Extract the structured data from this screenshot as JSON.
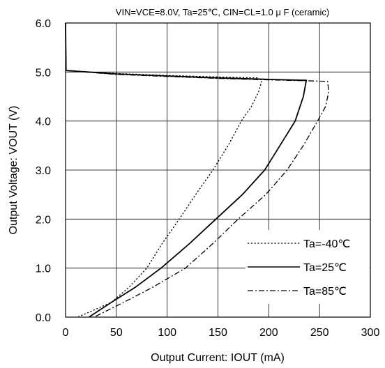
{
  "chart_data": {
    "type": "line",
    "conditions": "VIN=VCE=8.0V,  Ta=25℃,  CIN=CL=1.0 μ F  (ceramic)",
    "xlabel": "Output Current: IOUT (mA)",
    "ylabel": "Output Voltage: VOUT (V)",
    "xlim": [
      0,
      300
    ],
    "ylim": [
      0,
      6
    ],
    "xticks": [
      "0",
      "50",
      "100",
      "150",
      "200",
      "250",
      "300"
    ],
    "yticks": [
      "0.0",
      "1.0",
      "2.0",
      "3.0",
      "4.0",
      "5.0",
      "6.0"
    ],
    "grid": true,
    "legend_position": "bottom-right",
    "series": [
      {
        "name": "Ta=-40℃",
        "style": "dotted",
        "points": [
          [
            0,
            6.0
          ],
          [
            0.5,
            5.03
          ],
          [
            50,
            4.97
          ],
          [
            100,
            4.93
          ],
          [
            150,
            4.9
          ],
          [
            190,
            4.88
          ],
          [
            193,
            4.8
          ],
          [
            190,
            4.6
          ],
          [
            183,
            4.3
          ],
          [
            173,
            4.0
          ],
          [
            160,
            3.5
          ],
          [
            145,
            3.0
          ],
          [
            128,
            2.5
          ],
          [
            112,
            2.0
          ],
          [
            95,
            1.5
          ],
          [
            80,
            1.0
          ],
          [
            62,
            0.6
          ],
          [
            45,
            0.3
          ],
          [
            12,
            0.0
          ]
        ]
      },
      {
        "name": "Ta=25℃",
        "style": "solid",
        "points": [
          [
            0,
            6.0
          ],
          [
            0.5,
            5.03
          ],
          [
            50,
            4.96
          ],
          [
            100,
            4.92
          ],
          [
            150,
            4.88
          ],
          [
            200,
            4.85
          ],
          [
            237,
            4.83
          ],
          [
            234,
            4.5
          ],
          [
            226,
            4.0
          ],
          [
            211,
            3.5
          ],
          [
            196,
            3.0
          ],
          [
            174,
            2.5
          ],
          [
            148,
            2.0
          ],
          [
            122,
            1.5
          ],
          [
            94,
            1.0
          ],
          [
            68,
            0.6
          ],
          [
            45,
            0.3
          ],
          [
            23,
            0.0
          ]
        ]
      },
      {
        "name": "Ta=85℃",
        "style": "dash-dot",
        "points": [
          [
            0,
            6.0
          ],
          [
            0.5,
            5.03
          ],
          [
            50,
            4.95
          ],
          [
            100,
            4.91
          ],
          [
            150,
            4.87
          ],
          [
            200,
            4.84
          ],
          [
            240,
            4.82
          ],
          [
            258,
            4.81
          ],
          [
            259,
            4.6
          ],
          [
            256,
            4.3
          ],
          [
            248,
            4.0
          ],
          [
            234,
            3.5
          ],
          [
            218,
            3.0
          ],
          [
            197,
            2.5
          ],
          [
            170,
            2.0
          ],
          [
            145,
            1.5
          ],
          [
            118,
            1.0
          ],
          [
            85,
            0.6
          ],
          [
            57,
            0.3
          ],
          [
            28,
            0.0
          ]
        ]
      }
    ]
  }
}
